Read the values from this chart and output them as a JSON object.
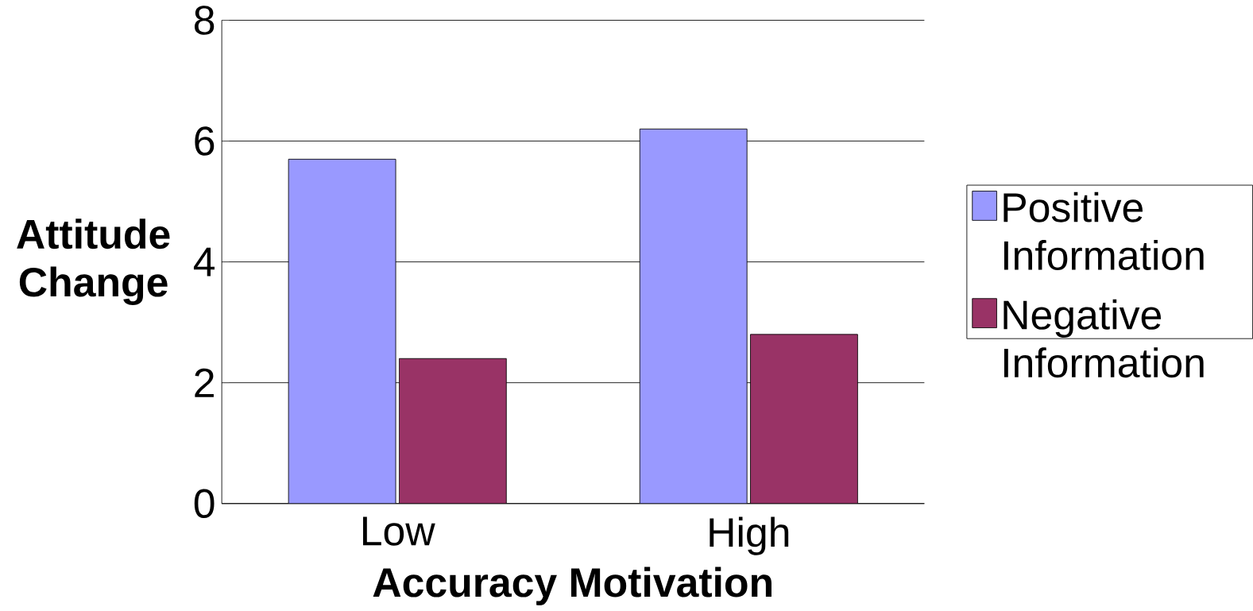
{
  "chart_data": {
    "type": "bar",
    "xlabel": "Accuracy Motivation",
    "ylabel": "Attitude Change",
    "categories": [
      "Low",
      "High"
    ],
    "series": [
      {
        "name": "Positive Information",
        "color": "#9999ff",
        "values": [
          5.7,
          6.2
        ]
      },
      {
        "name": "Negative Information",
        "color": "#993366",
        "values": [
          2.4,
          2.8
        ]
      }
    ],
    "ylim": [
      0,
      8
    ],
    "yticks": [
      0,
      2,
      4,
      6,
      8
    ],
    "grid": "y",
    "legend": "right"
  }
}
